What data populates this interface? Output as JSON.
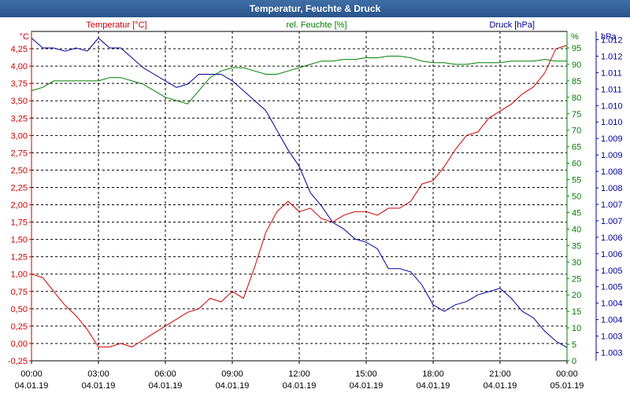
{
  "window": {
    "title": "Temperatur, Feuchte & Druck"
  },
  "chart_data": {
    "type": "line",
    "title": "Temperatur, Feuchte & Druck",
    "x_ticks": [
      {
        "time": "00:00",
        "date": "04.01.19"
      },
      {
        "time": "03:00",
        "date": "04.01.19"
      },
      {
        "time": "06:00",
        "date": "04.01.19"
      },
      {
        "time": "09:00",
        "date": "04.01.19"
      },
      {
        "time": "12:00",
        "date": "04.01.19"
      },
      {
        "time": "15:00",
        "date": "04.01.19"
      },
      {
        "time": "18:00",
        "date": "04.01.19"
      },
      {
        "time": "21:00",
        "date": "04.01.19"
      },
      {
        "time": "00:00",
        "date": "05.01.19"
      }
    ],
    "x_range_hours": [
      0,
      24
    ],
    "axes": {
      "temperature": {
        "label": "Temperatur [°C]",
        "unit": "°C",
        "color": "#cc0000",
        "range": [
          -0.25,
          4.5
        ],
        "ticks": [
          "-0,25",
          "0,00",
          "0,25",
          "0,50",
          "0,75",
          "1,00",
          "1,25",
          "1,50",
          "1,75",
          "2,00",
          "2,25",
          "2,50",
          "2,75",
          "3,00",
          "3,25",
          "3,50",
          "3,75",
          "4,00",
          "4,25"
        ]
      },
      "humidity": {
        "label": "rel. Feuchte [%]",
        "unit": "%",
        "color": "#008000",
        "range": [
          0,
          100
        ],
        "ticks": [
          "0",
          "5",
          "10",
          "15",
          "20",
          "25",
          "30",
          "35",
          "40",
          "45",
          "50",
          "55",
          "60",
          "65",
          "70",
          "75",
          "80",
          "85",
          "90",
          "95"
        ]
      },
      "pressure": {
        "label": "Druck [hPa]",
        "unit": "hPa",
        "color": "#000099",
        "range": [
          1002.6,
          1012.6
        ],
        "ticks": [
          "1.003",
          "1.003",
          "1.004",
          "1.004",
          "1.005",
          "1.005",
          "1.006",
          "1.006",
          "1.007",
          "1.007",
          "1.008",
          "1.008",
          "1.009",
          "1.009",
          "1.010",
          "1.010",
          "1.011",
          "1.011",
          "1.012",
          "1.012"
        ]
      }
    },
    "series": [
      {
        "name": "Temperatur",
        "axis": "temperature",
        "color": "#cc0000",
        "x": [
          0,
          0.5,
          1,
          1.5,
          2,
          2.5,
          3,
          3.5,
          4,
          4.5,
          5,
          5.5,
          6,
          6.5,
          7,
          7.5,
          8,
          8.5,
          9,
          9.5,
          10,
          10.5,
          11,
          11.5,
          12,
          12.5,
          13,
          13.5,
          14,
          14.5,
          15,
          15.5,
          16,
          16.5,
          17,
          17.5,
          18,
          18.5,
          19,
          19.5,
          20,
          20.5,
          21,
          21.5,
          22,
          22.5,
          23,
          23.5,
          24
        ],
        "values": [
          1.0,
          0.95,
          0.75,
          0.55,
          0.4,
          0.2,
          -0.05,
          -0.05,
          0.0,
          -0.05,
          0.05,
          0.15,
          0.25,
          0.35,
          0.45,
          0.5,
          0.65,
          0.6,
          0.75,
          0.65,
          1.1,
          1.6,
          1.9,
          2.05,
          1.9,
          1.95,
          1.8,
          1.75,
          1.85,
          1.9,
          1.9,
          1.85,
          1.95,
          1.95,
          2.05,
          2.3,
          2.35,
          2.55,
          2.8,
          3.0,
          3.05,
          3.25,
          3.35,
          3.45,
          3.6,
          3.7,
          3.9,
          4.25,
          4.3
        ]
      },
      {
        "name": "rel. Feuchte",
        "axis": "humidity",
        "color": "#008000",
        "x": [
          0,
          0.5,
          1,
          1.5,
          2,
          2.5,
          3,
          3.5,
          4,
          4.5,
          5,
          5.5,
          6,
          6.5,
          7,
          7.5,
          8,
          8.5,
          9,
          9.5,
          10,
          10.5,
          11,
          11.5,
          12,
          12.5,
          13,
          13.5,
          14,
          14.5,
          15,
          15.5,
          16,
          16.5,
          17,
          17.5,
          18,
          18.5,
          19,
          19.5,
          20,
          20.5,
          21,
          21.5,
          22,
          22.5,
          23,
          23.5,
          24
        ],
        "values": [
          82,
          83,
          85,
          85,
          85,
          85,
          85,
          86,
          86,
          85,
          84,
          82,
          80,
          79,
          78,
          82,
          86,
          88,
          89,
          89,
          88,
          87,
          87,
          88,
          89,
          90,
          91,
          91,
          91.5,
          91.5,
          92,
          92,
          92.5,
          92.5,
          92,
          91,
          90.5,
          90.5,
          90,
          90,
          90.5,
          90.5,
          90.5,
          91,
          91,
          91,
          91.5,
          91,
          91
        ]
      },
      {
        "name": "Druck",
        "axis": "pressure",
        "color": "#000099",
        "x": [
          0,
          0.5,
          1,
          1.5,
          2,
          2.5,
          3,
          3.5,
          4,
          4.5,
          5,
          5.5,
          6,
          6.5,
          7,
          7.5,
          8,
          8.5,
          9,
          9.5,
          10,
          10.5,
          11,
          11.5,
          12,
          12.5,
          13,
          13.5,
          14,
          14.5,
          15,
          15.5,
          16,
          16.5,
          17,
          17.5,
          18,
          18.5,
          19,
          19.5,
          20,
          20.5,
          21,
          21.5,
          22,
          22.5,
          23,
          23.5,
          24
        ],
        "values": [
          1012.4,
          1012.1,
          1012.1,
          1012.0,
          1012.1,
          1012.0,
          1012.4,
          1012.1,
          1012.1,
          1011.8,
          1011.5,
          1011.3,
          1011.1,
          1010.9,
          1011.0,
          1011.3,
          1011.3,
          1011.3,
          1011.1,
          1010.8,
          1010.5,
          1010.2,
          1009.6,
          1009.0,
          1008.5,
          1007.7,
          1007.3,
          1006.8,
          1006.6,
          1006.3,
          1006.2,
          1006.0,
          1005.4,
          1005.4,
          1005.3,
          1004.9,
          1004.3,
          1004.1,
          1004.3,
          1004.4,
          1004.6,
          1004.7,
          1004.8,
          1004.5,
          1004.1,
          1003.9,
          1003.5,
          1003.2,
          1003.0
        ]
      }
    ]
  }
}
